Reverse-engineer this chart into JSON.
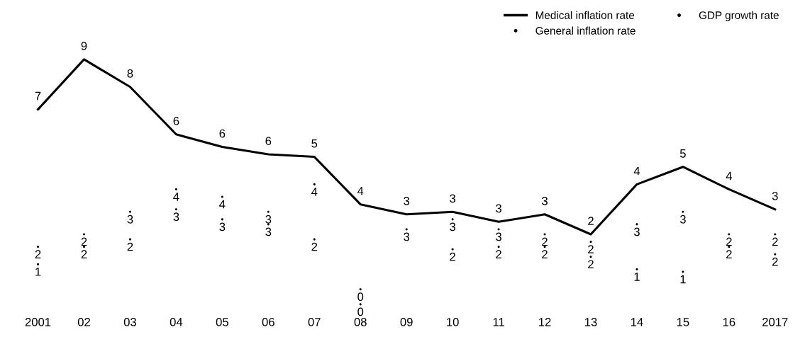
{
  "chart_data": {
    "type": "line",
    "categories": [
      "2001",
      "02",
      "03",
      "04",
      "05",
      "06",
      "07",
      "08",
      "09",
      "10",
      "11",
      "12",
      "13",
      "14",
      "15",
      "16",
      "2017"
    ],
    "series": [
      {
        "name": "Medical inflation rate",
        "color": "#000000",
        "values": [
          7.4,
          9.4,
          8.3,
          6.4,
          5.9,
          5.6,
          5.5,
          3.6,
          3.2,
          3.3,
          2.9,
          3.2,
          2.4,
          4.4,
          5.1,
          4.2,
          3.4
        ],
        "value_labels": [
          "7",
          "9",
          "8",
          "6",
          "6",
          "6",
          "5",
          "4",
          "3",
          "3",
          "3",
          "3",
          "2",
          "4",
          "5",
          "4",
          "3"
        ]
      },
      {
        "name": "General inflation rate",
        "type": "scatter",
        "color": "#000000",
        "values": [
          1.2,
          1.9,
          2.2,
          3.4,
          3.0,
          2.8,
          2.2,
          -0.4,
          2.6,
          1.8,
          1.9,
          1.9,
          1.5,
          1.0,
          0.9,
          1.9,
          1.6
        ],
        "value_labels": [
          "1",
          "2",
          "2",
          "3",
          "3",
          "3",
          "2",
          "0",
          "3",
          "2",
          "2",
          "2",
          "2",
          "1",
          "1",
          "2",
          "2"
        ]
      },
      {
        "name": "GDP growth rate",
        "type": "scatter",
        "color": "#000000",
        "values": [
          1.9,
          2.4,
          3.3,
          4.2,
          3.9,
          3.3,
          4.4,
          0.2,
          null,
          3.0,
          2.6,
          2.4,
          2.1,
          2.8,
          3.3,
          2.4,
          2.4
        ],
        "value_labels": [
          "2",
          "2",
          "3",
          "4",
          "4",
          "3",
          "4",
          "0",
          null,
          "3",
          "3",
          "2",
          "2",
          "3",
          "3",
          "2",
          "2"
        ]
      }
    ],
    "legend": "top right",
    "grid": false,
    "marker": "none"
  }
}
